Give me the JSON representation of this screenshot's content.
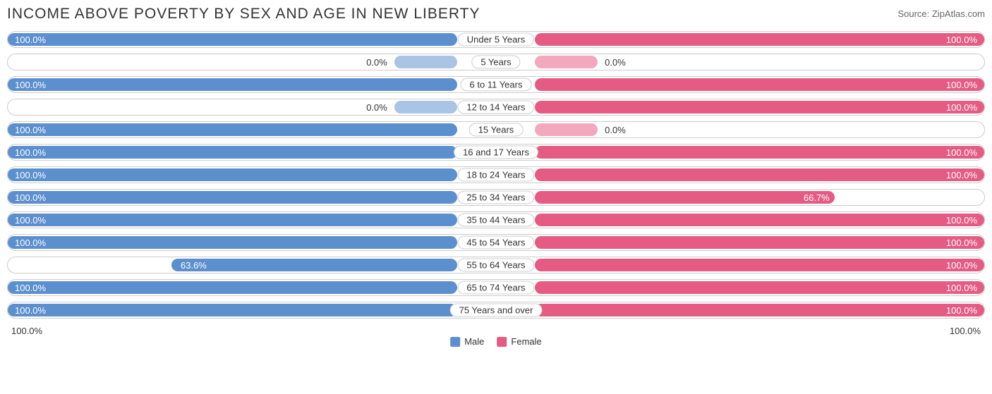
{
  "title": "INCOME ABOVE POVERTY BY SEX AND AGE IN NEW LIBERTY",
  "source": "Source: ZipAtlas.com",
  "colors": {
    "male": "#5b8fce",
    "female": "#e55b83",
    "male_light": "#a9c4e4",
    "female_light": "#f2a8bd",
    "border": "#cccccc",
    "text": "#333333",
    "bg": "#ffffff"
  },
  "legend": {
    "male": "Male",
    "female": "Female"
  },
  "axis": {
    "left": "100.0%",
    "right": "100.0%"
  },
  "stub_pct": 14,
  "rows": [
    {
      "label": "Under 5 Years",
      "male": 100.0,
      "female": 100.0,
      "male_txt": "100.0%",
      "female_txt": "100.0%"
    },
    {
      "label": "5 Years",
      "male": 0.0,
      "female": 0.0,
      "male_txt": "0.0%",
      "female_txt": "0.0%"
    },
    {
      "label": "6 to 11 Years",
      "male": 100.0,
      "female": 100.0,
      "male_txt": "100.0%",
      "female_txt": "100.0%"
    },
    {
      "label": "12 to 14 Years",
      "male": 0.0,
      "female": 100.0,
      "male_txt": "0.0%",
      "female_txt": "100.0%"
    },
    {
      "label": "15 Years",
      "male": 100.0,
      "female": 0.0,
      "male_txt": "100.0%",
      "female_txt": "0.0%"
    },
    {
      "label": "16 and 17 Years",
      "male": 100.0,
      "female": 100.0,
      "male_txt": "100.0%",
      "female_txt": "100.0%"
    },
    {
      "label": "18 to 24 Years",
      "male": 100.0,
      "female": 100.0,
      "male_txt": "100.0%",
      "female_txt": "100.0%"
    },
    {
      "label": "25 to 34 Years",
      "male": 100.0,
      "female": 66.7,
      "male_txt": "100.0%",
      "female_txt": "66.7%"
    },
    {
      "label": "35 to 44 Years",
      "male": 100.0,
      "female": 100.0,
      "male_txt": "100.0%",
      "female_txt": "100.0%"
    },
    {
      "label": "45 to 54 Years",
      "male": 100.0,
      "female": 100.0,
      "male_txt": "100.0%",
      "female_txt": "100.0%"
    },
    {
      "label": "55 to 64 Years",
      "male": 63.6,
      "female": 100.0,
      "male_txt": "63.6%",
      "female_txt": "100.0%"
    },
    {
      "label": "65 to 74 Years",
      "male": 100.0,
      "female": 100.0,
      "male_txt": "100.0%",
      "female_txt": "100.0%"
    },
    {
      "label": "75 Years and over",
      "male": 100.0,
      "female": 100.0,
      "male_txt": "100.0%",
      "female_txt": "100.0%"
    }
  ]
}
